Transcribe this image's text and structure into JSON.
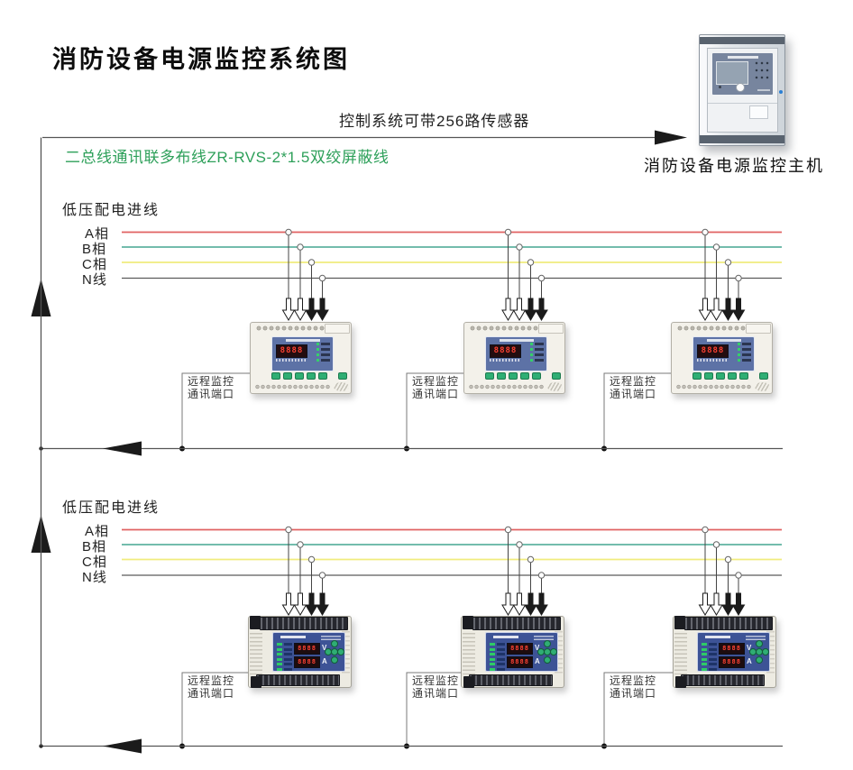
{
  "page": {
    "title": "消防设备电源监控系统图"
  },
  "header": {
    "capacity_note": "控制系统可带256路传感器",
    "bus_wiring_label": "二总线通讯联多布线ZR-RVS-2*1.5双绞屏蔽线",
    "host_label": "消防设备电源监控主机"
  },
  "port_label": {
    "l1": "远程监控",
    "l2": "通讯端口"
  },
  "sections": [
    {
      "incoming_label": "低压配电进线",
      "phases": [
        {
          "label": "A相",
          "color": "#e06262"
        },
        {
          "label": "B相",
          "color": "#5fb2a0"
        },
        {
          "label": "C相",
          "color": "#f0ec7e"
        },
        {
          "label": "N线",
          "color": "#5a5a5a"
        }
      ]
    },
    {
      "incoming_label": "低压配电进线",
      "phases": [
        {
          "label": "A相",
          "color": "#e06262"
        },
        {
          "label": "B相",
          "color": "#5fb2a0"
        },
        {
          "label": "C相",
          "color": "#f0ec7e"
        },
        {
          "label": "N线",
          "color": "#5a5a5a"
        }
      ]
    }
  ],
  "device": {
    "display_digits": "8888",
    "v_label": "V",
    "a_label": "A"
  },
  "colors": {
    "wire": "#555555",
    "connector": "#7a7a7a",
    "arrow": "#1b1b1b",
    "bus_label_green": "#2ea05a"
  }
}
